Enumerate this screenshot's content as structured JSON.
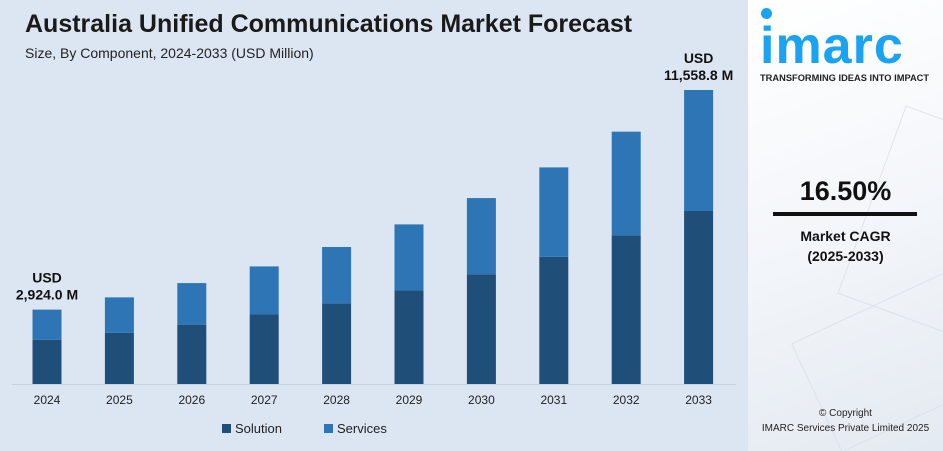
{
  "chart_data": {
    "type": "bar",
    "stacked": true,
    "title": "Australia Unified Communications Market Forecast",
    "subtitle": "Size, By Component, 2024-2033 (USD Million)",
    "categories": [
      "2024",
      "2025",
      "2026",
      "2027",
      "2028",
      "2029",
      "2030",
      "2031",
      "2032",
      "2033"
    ],
    "series": [
      {
        "name": "Solution",
        "color": "#1f4e79",
        "values": [
          1734,
          2015,
          2334,
          2746,
          3162,
          3679,
          4310,
          5002,
          5848,
          6802
        ]
      },
      {
        "name": "Services",
        "color": "#2e75b6",
        "values": [
          1190,
          1391,
          1634,
          1877,
          2224,
          2596,
          3000,
          3514,
          4073,
          4757
        ]
      }
    ],
    "annotations": [
      {
        "category": "2024",
        "line1": "USD",
        "line2": "2,924.0 M"
      },
      {
        "category": "2033",
        "line1": "USD",
        "line2": "11,558.8 M"
      }
    ],
    "legend_position": "bottom",
    "grid": false
  },
  "side": {
    "logo_text": "imarc",
    "tagline": "TRANSFORMING IDEAS INTO IMPACT",
    "cagr_value": "16.50%",
    "cagr_label": "Market CAGR",
    "cagr_period": "(2025-2033)",
    "copyright": "© Copyright",
    "company": "IMARC Services Private Limited 2025",
    "brand_color": "#1aa3f0"
  }
}
